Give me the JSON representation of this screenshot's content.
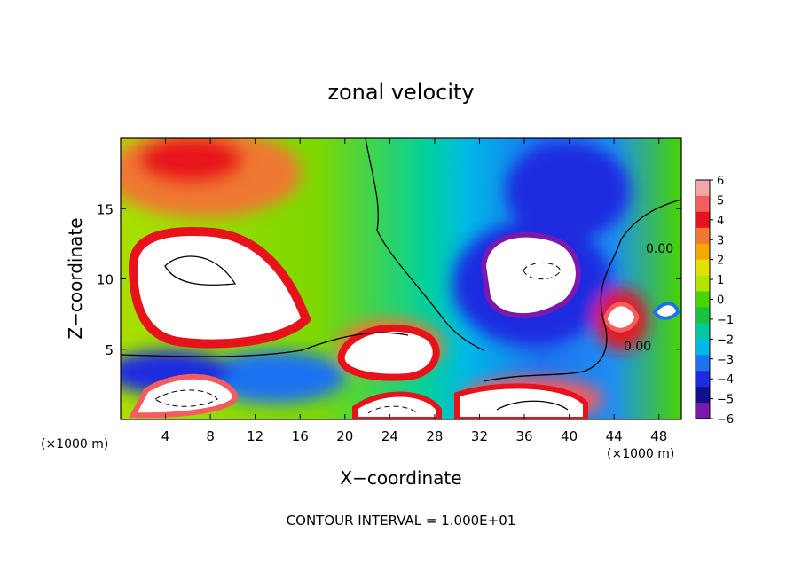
{
  "chart_data": {
    "type": "heatmap",
    "title": "zonal velocity",
    "xlabel": "X−coordinate",
    "ylabel": "Z−coordinate",
    "x_unit_left": "(×1000 m)",
    "x_unit_right": "(×1000 m)",
    "xlim": [
      0,
      50
    ],
    "ylim": [
      0,
      20
    ],
    "xticks": [
      4,
      8,
      12,
      16,
      20,
      24,
      28,
      32,
      36,
      40,
      44,
      48
    ],
    "yticks": [
      5,
      10,
      15
    ],
    "colorbar": {
      "ticks": [
        "6",
        "5",
        "4",
        "3",
        "2",
        "1",
        "0",
        "−1",
        "−2",
        "−3",
        "−4",
        "−5",
        "−6"
      ],
      "colors": [
        "#f4a6a6",
        "#f45d5d",
        "#e8121b",
        "#f07830",
        "#f5a800",
        "#e4e000",
        "#b4e400",
        "#48d400",
        "#18c43c",
        "#00c8a0",
        "#00b8e8",
        "#1d72f0",
        "#1e2ae0",
        "#101090",
        "#7a18b0"
      ]
    },
    "contour_labels": [
      "0.00",
      "0.00"
    ],
    "footnote": "CONTOUR INTERVAL = 1.000E+01"
  }
}
